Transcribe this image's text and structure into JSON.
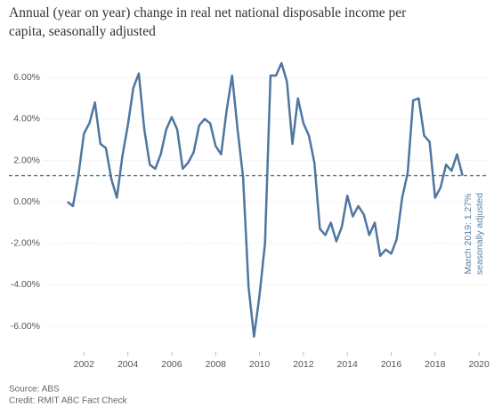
{
  "chart_data": {
    "type": "line",
    "title": "Annual (year on year) change in real net national disposable income per capita, seasonally adjusted",
    "title_lines": [
      "Annual (year on year) change in real net national disposable income per",
      "capita, seasonally adjusted"
    ],
    "x": [
      2001.25,
      2001.5,
      2001.75,
      2002,
      2002.25,
      2002.5,
      2002.75,
      2003,
      2003.25,
      2003.5,
      2003.75,
      2004,
      2004.25,
      2004.5,
      2004.75,
      2005,
      2005.25,
      2005.5,
      2005.75,
      2006,
      2006.25,
      2006.5,
      2006.75,
      2007,
      2007.25,
      2007.5,
      2007.75,
      2008,
      2008.25,
      2008.5,
      2008.75,
      2009,
      2009.25,
      2009.5,
      2009.75,
      2010,
      2010.25,
      2010.5,
      2010.75,
      2011,
      2011.25,
      2011.5,
      2011.75,
      2012,
      2012.25,
      2012.5,
      2012.75,
      2013,
      2013.25,
      2013.5,
      2013.75,
      2014,
      2014.25,
      2014.5,
      2014.75,
      2015,
      2015.25,
      2015.5,
      2015.75,
      2016,
      2016.25,
      2016.5,
      2016.75,
      2017,
      2017.25,
      2017.5,
      2017.75,
      2018,
      2018.25,
      2018.5,
      2018.75,
      2019,
      2019.25
    ],
    "series": [
      {
        "name": "Real net national disposable income per capita",
        "color": "#4e76a0",
        "values": [
          0,
          -0.2,
          1.3,
          3.3,
          3.8,
          4.8,
          2.8,
          2.6,
          1.1,
          0.2,
          2.2,
          3.7,
          5.5,
          6.2,
          3.5,
          1.8,
          1.6,
          2.3,
          3.5,
          4.1,
          3.5,
          1.6,
          1.9,
          2.4,
          3.7,
          4.0,
          3.8,
          2.7,
          2.3,
          4.4,
          6.1,
          3.5,
          1.2,
          -4.1,
          -6.5,
          -4.5,
          -2.0,
          6.1,
          6.1,
          6.7,
          5.8,
          2.8,
          5.0,
          3.8,
          3.2,
          1.9,
          -1.3,
          -1.6,
          -1.0,
          -1.9,
          -1.2,
          0.3,
          -0.7,
          -0.2,
          -0.6,
          -1.6,
          -1.0,
          -2.6,
          -2.3,
          -2.5,
          -1.8,
          0.2,
          1.4,
          4.9,
          5.0,
          3.2,
          2.9,
          0.2,
          0.7,
          1.8,
          1.5,
          2.3,
          1.27
        ]
      }
    ],
    "xlim": [
      2000,
      2020.4
    ],
    "xticks": [
      2002,
      2004,
      2006,
      2008,
      2010,
      2012,
      2014,
      2016,
      2018,
      2020
    ],
    "ylim": [
      -7.2,
      7.6
    ],
    "yticks": [
      {
        "value": 6,
        "label": "6.00%"
      },
      {
        "value": 4,
        "label": "4.00%"
      },
      {
        "value": 2,
        "label": "2.00%"
      },
      {
        "value": 0,
        "label": "0.00%"
      },
      {
        "value": -2,
        "label": "-2.00%"
      },
      {
        "value": -4,
        "label": "-4.00%"
      },
      {
        "value": -6,
        "label": "-6.00%"
      }
    ],
    "grid": true,
    "reference_line": {
      "value": 1.27,
      "color": "#4e76a0"
    },
    "annotations": [
      "March 2019: 1.27%",
      "seasonally adjusted"
    ],
    "source": "Source: ABS",
    "credit": "Credit: RMIT ABC Fact Check"
  }
}
